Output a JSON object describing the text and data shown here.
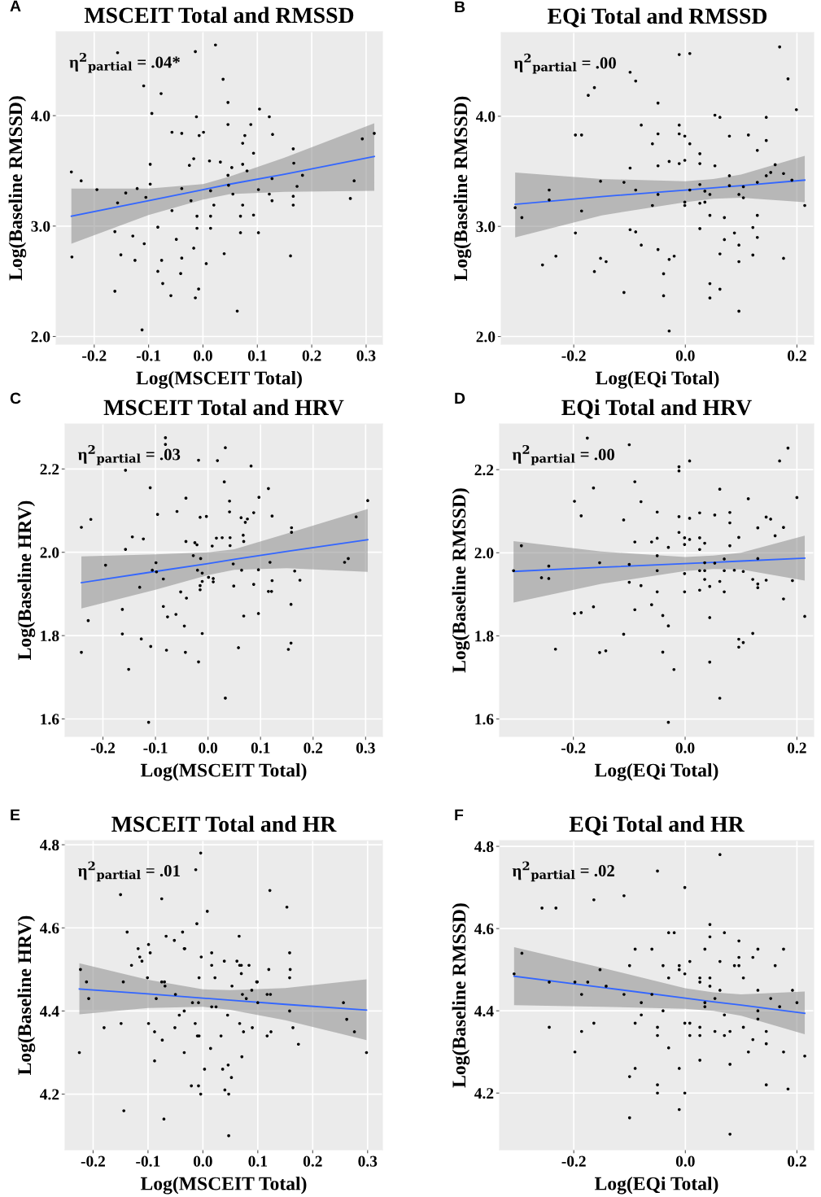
{
  "chart_data": [
    {
      "type": "scatter",
      "title": "MSCEIT Total and RMSSD",
      "xlabel": "Log(MSCEIT Total)",
      "ylabel": "Log(Baseline RMSSD)",
      "annotations": [
        "A",
        "η$^{2}$$_{partial}$ = .04*"
      ],
      "xlim": [
        -0.27,
        0.33
      ],
      "ylim": [
        1.93,
        4.76
      ],
      "xticks": [
        {
          "value": -0.2,
          "label": "-0.2"
        },
        {
          "value": -0.1,
          "label": "-0.1"
        },
        {
          "value": 0.0,
          "label": "0.0"
        },
        {
          "value": 0.1,
          "label": "0.1"
        },
        {
          "value": 0.2,
          "label": "0.2"
        },
        {
          "value": 0.3,
          "label": "0.3"
        }
      ],
      "yticks": [
        {
          "value": 2.0,
          "label": "2.0"
        },
        {
          "value": 3.0,
          "label": "3.0"
        },
        {
          "value": 4.0,
          "label": "4.0"
        }
      ],
      "grid": true,
      "series": [
        {
          "marker": "circle",
          "color": "#000000",
          "x": [
            -0.242,
            -0.241,
            -0.224,
            -0.195,
            -0.162,
            -0.162,
            -0.157,
            -0.157,
            -0.151,
            -0.142,
            -0.129,
            -0.125,
            -0.121,
            -0.109,
            -0.108,
            -0.105,
            -0.097,
            -0.097,
            -0.094,
            -0.112,
            -0.083,
            -0.083,
            -0.077,
            -0.076,
            -0.074,
            -0.059,
            -0.057,
            -0.057,
            -0.049,
            -0.041,
            -0.039,
            -0.039,
            -0.039,
            -0.025,
            -0.022,
            -0.017,
            -0.017,
            -0.014,
            -0.014,
            -0.012,
            -0.011,
            -0.011,
            -0.008,
            -0.007,
            0.001,
            0.006,
            0.012,
            0.014,
            0.014,
            0.014,
            0.02,
            0.023,
            0.032,
            0.037,
            0.039,
            0.046,
            0.046,
            0.046,
            0.047,
            0.053,
            0.055,
            0.063,
            0.069,
            0.069,
            0.073,
            0.073,
            0.073,
            0.077,
            0.081,
            0.088,
            0.093,
            0.093,
            0.102,
            0.102,
            0.104,
            0.122,
            0.122,
            0.127,
            0.127,
            0.128,
            0.161,
            0.166,
            0.167,
            0.166,
            0.166,
            0.173,
            0.183,
            0.271,
            0.278,
            0.293,
            0.315
          ],
          "values": [
            3.49,
            2.72,
            3.41,
            3.33,
            2.95,
            2.41,
            4.57,
            3.21,
            2.74,
            3.3,
            2.91,
            2.69,
            3.34,
            4.27,
            2.84,
            3.26,
            3.38,
            3.56,
            4.02,
            2.06,
            2.99,
            2.59,
            4.2,
            2.69,
            2.48,
            2.37,
            3.85,
            3.14,
            2.88,
            2.57,
            3.84,
            3.34,
            2.71,
            3.55,
            3.23,
            3.61,
            2.8,
            4.58,
            2.35,
            3.99,
            2.98,
            3.09,
            2.43,
            3.82,
            3.85,
            2.66,
            3.59,
            3.32,
            2.98,
            3.09,
            3.19,
            4.64,
            3.58,
            4.33,
            2.75,
            4.12,
            3.92,
            3.46,
            3.37,
            3.53,
            3.29,
            2.23,
            3.09,
            2.94,
            3.56,
            3.75,
            3.19,
            3.82,
            3.5,
            3.92,
            3.66,
            3.1,
            3.33,
            2.94,
            4.06,
            3.99,
            3.29,
            3.43,
            3.23,
            3.83,
            2.73,
            3.7,
            3.57,
            3.27,
            3.19,
            3.36,
            3.46,
            3.25,
            3.41,
            3.79,
            3.84
          ]
        },
        {
          "type": "line",
          "color": "#3366ff",
          "x": [
            -0.242,
            -0.1,
            0.0,
            0.05,
            0.15,
            0.315
          ],
          "values": [
            3.09,
            3.23,
            3.33,
            3.38,
            3.47,
            3.63
          ],
          "lower": [
            2.84,
            3.1,
            3.24,
            3.29,
            3.31,
            3.32
          ],
          "upper": [
            3.34,
            3.34,
            3.38,
            3.45,
            3.62,
            3.93
          ]
        }
      ]
    },
    {
      "type": "scatter",
      "title": "EQi Total and RMSSD",
      "xlabel": "Log(EQi Total)",
      "ylabel": "Log(Baseline RMSSD)",
      "annotations": [
        "B",
        "η$^{2}$$_{partial}$ = .00"
      ],
      "xlim": [
        -0.33,
        0.23
      ],
      "ylim": [
        1.93,
        4.76
      ],
      "xticks": [
        {
          "value": -0.2,
          "label": "-0.2"
        },
        {
          "value": 0.0,
          "label": "0.0"
        },
        {
          "value": 0.2,
          "label": "0.2"
        }
      ],
      "yticks": [
        {
          "value": 2.0,
          "label": "2.0"
        },
        {
          "value": 3.0,
          "label": "3.0"
        },
        {
          "value": 4.0,
          "label": "4.0"
        }
      ],
      "grid": true,
      "series": [
        {
          "marker": "circle",
          "color": "#000000",
          "x": [
            -0.305,
            -0.293,
            -0.256,
            -0.244,
            -0.244,
            -0.232,
            -0.197,
            -0.197,
            -0.186,
            -0.186,
            -0.174,
            -0.163,
            -0.163,
            -0.152,
            -0.152,
            -0.142,
            -0.11,
            -0.11,
            -0.099,
            -0.099,
            -0.099,
            -0.089,
            -0.089,
            -0.089,
            -0.079,
            -0.079,
            -0.059,
            -0.059,
            -0.049,
            -0.049,
            -0.049,
            -0.049,
            -0.049,
            -0.039,
            -0.039,
            -0.029,
            -0.029,
            -0.029,
            -0.02,
            -0.011,
            -0.011,
            -0.011,
            -0.011,
            -0.001,
            -0.001,
            -0.001,
            -0.001,
            0.008,
            0.008,
            0.008,
            0.026,
            0.026,
            0.026,
            0.026,
            0.026,
            0.035,
            0.035,
            0.044,
            0.044,
            0.044,
            0.044,
            0.053,
            0.053,
            0.062,
            0.062,
            0.062,
            0.07,
            0.07,
            0.079,
            0.079,
            0.079,
            0.088,
            0.096,
            0.096,
            0.096,
            0.096,
            0.104,
            0.104,
            0.113,
            0.121,
            0.121,
            0.129,
            0.129,
            0.129,
            0.129,
            0.145,
            0.145,
            0.145,
            0.153,
            0.161,
            0.169,
            0.176,
            0.176,
            0.184,
            0.191,
            0.199,
            0.214
          ],
          "values": [
            3.17,
            3.08,
            2.65,
            3.33,
            3.24,
            2.73,
            2.94,
            3.83,
            3.83,
            3.14,
            4.19,
            4.26,
            2.59,
            3.41,
            2.71,
            2.68,
            3.4,
            2.4,
            4.4,
            3.53,
            2.97,
            4.32,
            3.33,
            2.95,
            3.92,
            2.83,
            3.75,
            3.19,
            4.12,
            3.84,
            3.55,
            3.29,
            2.79,
            2.57,
            2.37,
            3.59,
            2.7,
            2.05,
            2.73,
            4.56,
            3.92,
            3.84,
            3.57,
            3.82,
            3.6,
            3.22,
            3.19,
            4.57,
            3.75,
            3.33,
            3.66,
            3.57,
            3.38,
            3.21,
            2.98,
            3.32,
            3.22,
            3.29,
            3.1,
            2.48,
            2.35,
            4.01,
            3.55,
            3.99,
            2.75,
            2.43,
            3.08,
            2.88,
            3.82,
            3.46,
            3.37,
            2.94,
            3.29,
            2.83,
            2.68,
            2.23,
            3.36,
            3.26,
            3.83,
            2.99,
            2.74,
            3.69,
            3.4,
            3.1,
            2.9,
            3.99,
            3.78,
            3.46,
            3.49,
            3.56,
            4.63,
            3.48,
            2.71,
            4.34,
            3.42,
            4.06,
            3.19
          ]
        },
        {
          "type": "line",
          "color": "#3366ff",
          "x": [
            -0.305,
            -0.15,
            0.0,
            0.05,
            0.1,
            0.214
          ],
          "values": [
            3.2,
            3.27,
            3.33,
            3.35,
            3.37,
            3.42
          ],
          "lower": [
            2.9,
            3.1,
            3.22,
            3.25,
            3.26,
            3.22
          ],
          "upper": [
            3.49,
            3.43,
            3.41,
            3.43,
            3.47,
            3.64
          ]
        }
      ]
    },
    {
      "type": "scatter",
      "title": "MSCEIT Total and HRV",
      "xlabel": "Log(MSCEIT Total)",
      "ylabel": "Log(Baseline HRV)",
      "annotations": [
        "C",
        "η$^{2}$$_{partial}$ = .03"
      ],
      "xlim": [
        -0.272,
        0.332
      ],
      "ylim": [
        1.558,
        2.308
      ],
      "xticks": [
        {
          "value": -0.2,
          "label": "-0.2"
        },
        {
          "value": -0.1,
          "label": "-0.1"
        },
        {
          "value": 0.0,
          "label": "0.0"
        },
        {
          "value": 0.1,
          "label": "0.1"
        },
        {
          "value": 0.2,
          "label": "0.2"
        },
        {
          "value": 0.3,
          "label": "0.3"
        }
      ],
      "yticks": [
        {
          "value": 1.6,
          "label": "1.6"
        },
        {
          "value": 1.8,
          "label": "1.8"
        },
        {
          "value": 2.0,
          "label": "2.0"
        },
        {
          "value": 2.2,
          "label": "2.2"
        }
      ],
      "grid": true,
      "series": [
        {
          "marker": "circle",
          "color": "#000000",
          "x": [
            -0.241,
            -0.241,
            -0.228,
            -0.223,
            -0.195,
            -0.163,
            -0.163,
            -0.157,
            -0.157,
            -0.151,
            -0.144,
            -0.13,
            -0.127,
            -0.123,
            -0.11,
            -0.109,
            -0.113,
            -0.106,
            -0.099,
            -0.098,
            -0.096,
            -0.085,
            -0.085,
            -0.081,
            -0.081,
            -0.079,
            -0.077,
            -0.061,
            -0.059,
            -0.052,
            -0.045,
            -0.042,
            -0.042,
            -0.041,
            -0.043,
            -0.028,
            -0.025,
            -0.021,
            -0.02,
            -0.018,
            -0.018,
            -0.015,
            -0.015,
            -0.015,
            -0.014,
            -0.011,
            -0.011,
            -0.011,
            -0.003,
            0.001,
            0.008,
            0.01,
            0.01,
            0.016,
            0.018,
            0.027,
            0.031,
            0.033,
            0.033,
            0.041,
            0.041,
            0.042,
            0.042,
            0.048,
            0.049,
            0.058,
            0.063,
            0.064,
            0.067,
            0.068,
            0.068,
            0.071,
            0.075,
            0.082,
            0.087,
            0.087,
            0.096,
            0.096,
            0.097,
            0.115,
            0.115,
            0.118,
            0.121,
            0.122,
            0.122,
            0.153,
            0.158,
            0.158,
            0.159,
            0.159,
            0.165,
            0.175,
            0.26,
            0.267,
            0.282,
            0.304
          ],
          "values": [
            2.06,
            1.76,
            1.836,
            2.079,
            1.969,
            1.863,
            1.804,
            2.197,
            2.007,
            1.719,
            2.037,
            1.916,
            1.792,
            2.032,
            2.155,
            1.774,
            1.592,
            1.957,
            1.975,
            1.953,
            2.091,
            1.936,
            1.87,
            2.275,
            2.259,
            1.765,
            1.845,
            1.851,
            2.098,
            1.905,
            1.823,
            2.13,
            2.026,
            1.89,
            1.76,
            1.992,
            2.023,
            2.018,
            1.957,
            2.221,
            1.737,
            2.084,
            1.92,
            1.91,
            1.985,
            1.93,
            1.95,
            1.805,
            2.086,
            1.94,
            2.015,
            1.929,
            1.937,
            2.034,
            2.22,
            2.035,
            2.169,
            2.251,
            1.65,
            2.123,
            2.097,
            2.035,
            2.016,
            1.972,
            1.919,
            1.771,
            2.083,
            1.957,
            2.041,
            2.026,
            1.847,
            2.072,
            2.08,
            2.207,
            1.923,
            2.095,
            1.958,
            1.853,
            2.132,
            2.153,
            1.906,
            1.976,
            1.906,
            1.932,
            2.087,
            1.767,
            1.875,
            1.782,
            2.059,
            2.048,
            1.955,
            1.933,
            1.976,
            1.985,
            2.085,
            2.124
          ]
        },
        {
          "type": "line",
          "color": "#3366ff",
          "x": [
            -0.241,
            -0.1,
            0.0,
            0.05,
            0.15,
            0.304
          ],
          "values": [
            1.927,
            1.954,
            1.973,
            1.983,
            2.002,
            2.03
          ],
          "lower": [
            1.865,
            1.91,
            1.945,
            1.958,
            1.962,
            1.953
          ],
          "upper": [
            1.99,
            1.995,
            2.0,
            2.007,
            2.045,
            2.104
          ]
        }
      ]
    },
    {
      "type": "scatter",
      "title": "EQi Total and HRV",
      "xlabel": "Log(EQi Total)",
      "ylabel": "Log(Baseline RMSSD)",
      "annotations": [
        "D",
        "η$^{2}$$_{partial}$ = .00"
      ],
      "xlim": [
        -0.332,
        0.23
      ],
      "ylim": [
        1.558,
        2.31
      ],
      "xticks": [
        {
          "value": -0.2,
          "label": "-0.2"
        },
        {
          "value": 0.0,
          "label": "0.0"
        },
        {
          "value": 0.2,
          "label": "0.2"
        }
      ],
      "yticks": [
        {
          "value": 1.6,
          "label": "1.6"
        },
        {
          "value": 1.8,
          "label": "1.8"
        },
        {
          "value": 2.0,
          "label": "2.0"
        },
        {
          "value": 2.2,
          "label": "2.2"
        }
      ],
      "grid": true,
      "series": [
        {
          "marker": "circle",
          "color": "#000000",
          "x": [
            -0.307,
            -0.293,
            -0.257,
            -0.244,
            -0.244,
            -0.232,
            -0.198,
            -0.198,
            -0.186,
            -0.186,
            -0.175,
            -0.164,
            -0.164,
            -0.153,
            -0.153,
            -0.142,
            -0.11,
            -0.11,
            -0.1,
            -0.1,
            -0.1,
            -0.09,
            -0.09,
            -0.09,
            -0.079,
            -0.079,
            -0.06,
            -0.06,
            -0.05,
            -0.05,
            -0.05,
            -0.05,
            -0.05,
            -0.04,
            -0.04,
            -0.03,
            -0.03,
            -0.03,
            -0.02,
            -0.011,
            -0.011,
            -0.011,
            -0.011,
            -0.001,
            -0.001,
            -0.001,
            -0.001,
            0.008,
            0.008,
            0.008,
            0.026,
            0.026,
            0.026,
            0.026,
            0.026,
            0.035,
            0.035,
            0.035,
            0.035,
            0.044,
            0.044,
            0.044,
            0.053,
            0.053,
            0.062,
            0.062,
            0.062,
            0.07,
            0.07,
            0.07,
            0.08,
            0.08,
            0.08,
            0.088,
            0.096,
            0.096,
            0.096,
            0.104,
            0.104,
            0.113,
            0.121,
            0.121,
            0.13,
            0.13,
            0.13,
            0.13,
            0.145,
            0.145,
            0.153,
            0.161,
            0.169,
            0.176,
            0.176,
            0.184,
            0.192,
            0.2,
            0.214
          ],
          "values": [
            1.957,
            2.017,
            1.94,
            1.968,
            1.938,
            1.768,
            2.124,
            1.854,
            2.089,
            1.856,
            2.276,
            2.156,
            1.87,
            1.976,
            1.76,
            1.764,
            2.079,
            1.804,
            2.26,
            1.972,
            1.929,
            2.171,
            2.026,
            1.863,
            2.123,
            1.921,
            2.026,
            1.875,
            2.098,
            2.035,
            1.993,
            1.957,
            1.906,
            1.849,
            1.761,
            2.013,
            1.824,
            1.592,
            1.719,
            2.207,
            2.197,
            2.087,
            2.049,
            2.036,
            2.02,
            1.95,
            1.906,
            2.221,
            2.083,
            2.032,
            2.096,
            2.036,
            2.008,
            1.957,
            1.91,
            2.023,
            1.976,
            1.957,
            1.936,
            1.919,
            1.844,
            1.737,
            2.091,
            1.975,
            2.153,
            1.931,
            1.65,
            1.985,
            1.957,
            1.906,
            2.097,
            2.072,
            2.017,
            1.958,
            2.037,
            1.792,
            1.773,
            1.784,
            1.955,
            2.13,
            1.936,
            1.806,
            2.06,
            1.986,
            1.925,
            1.916,
            2.086,
            1.934,
            2.081,
            2.041,
            2.221,
            2.061,
            1.889,
            2.252,
            1.933,
            2.133,
            1.847
          ]
        },
        {
          "type": "line",
          "color": "#3366ff",
          "x": [
            -0.307,
            -0.15,
            0.0,
            0.05,
            0.1,
            0.214
          ],
          "values": [
            1.955,
            1.965,
            1.974,
            1.977,
            1.98,
            1.987
          ],
          "lower": [
            1.88,
            1.925,
            1.956,
            1.961,
            1.96,
            1.933
          ],
          "upper": [
            2.028,
            2.003,
            1.99,
            1.993,
            2.0,
            2.041
          ]
        }
      ]
    },
    {
      "type": "scatter",
      "title": "MSCEIT Total and HR",
      "xlabel": "Log(MSCEIT Total)",
      "ylabel": "Log(Baseline HRV)",
      "annotations": [
        "E",
        "η$^{2}$$_{partial}$ = .01"
      ],
      "xlim": [
        -0.251,
        0.327
      ],
      "ylim": [
        4.066,
        4.81
      ],
      "xticks": [
        {
          "value": -0.2,
          "label": "-0.2"
        },
        {
          "value": -0.1,
          "label": "-0.1"
        },
        {
          "value": 0.0,
          "label": "0.0"
        },
        {
          "value": 0.1,
          "label": "0.1"
        },
        {
          "value": 0.2,
          "label": "0.2"
        },
        {
          "value": 0.3,
          "label": "0.3"
        }
      ],
      "yticks": [
        {
          "value": 4.2,
          "label": "4.2"
        },
        {
          "value": 4.4,
          "label": "4.4"
        },
        {
          "value": 4.6,
          "label": "4.6"
        },
        {
          "value": 4.8,
          "label": "4.8"
        }
      ],
      "grid": true,
      "series": [
        {
          "marker": "circle",
          "color": "#000000",
          "x": [
            -0.225,
            -0.223,
            -0.212,
            -0.208,
            -0.18,
            -0.15,
            -0.149,
            -0.145,
            -0.144,
            -0.138,
            -0.13,
            -0.118,
            -0.115,
            -0.111,
            -0.101,
            -0.099,
            -0.099,
            -0.096,
            -0.088,
            -0.088,
            -0.085,
            -0.075,
            -0.075,
            -0.074,
            -0.071,
            -0.07,
            -0.069,
            -0.067,
            -0.052,
            -0.051,
            -0.05,
            -0.043,
            -0.037,
            -0.034,
            -0.033,
            -0.034,
            -0.034,
            -0.021,
            -0.019,
            -0.014,
            -0.013,
            -0.011,
            -0.01,
            -0.008,
            -0.008,
            -0.007,
            -0.007,
            -0.004,
            -0.003,
            -0.004,
            0.003,
            0.008,
            0.014,
            0.016,
            0.016,
            0.016,
            0.022,
            0.024,
            0.033,
            0.036,
            0.039,
            0.04,
            0.045,
            0.046,
            0.047,
            0.047,
            0.052,
            0.053,
            0.062,
            0.066,
            0.067,
            0.067,
            0.07,
            0.07,
            0.071,
            0.072,
            0.074,
            0.079,
            0.084,
            0.089,
            0.09,
            0.098,
            0.099,
            0.1,
            0.117,
            0.117,
            0.12,
            0.122,
            0.123,
            0.124,
            0.153,
            0.158,
            0.159,
            0.158,
            0.158,
            0.164,
            0.174,
            0.256,
            0.262,
            0.276,
            0.298
          ],
          "values": [
            4.3,
            4.5,
            4.47,
            4.43,
            4.36,
            4.68,
            4.37,
            4.47,
            4.16,
            4.59,
            4.51,
            4.55,
            4.53,
            4.52,
            4.48,
            4.56,
            4.37,
            4.54,
            4.35,
            4.28,
            4.43,
            4.67,
            4.47,
            4.33,
            4.14,
            4.47,
            4.46,
            4.58,
            4.57,
            4.36,
            4.44,
            4.39,
            4.59,
            4.55,
            4.55,
            4.4,
            4.3,
            4.22,
            4.42,
            4.37,
            4.74,
            4.61,
            4.34,
            4.22,
            4.42,
            4.48,
            4.34,
            4.78,
            4.53,
            4.2,
            4.26,
            4.64,
            4.31,
            4.54,
            4.51,
            4.41,
            4.48,
            4.41,
            4.34,
            4.26,
            4.52,
            4.21,
            4.39,
            4.27,
            4.2,
            4.1,
            4.24,
            4.46,
            4.52,
            4.58,
            4.37,
            4.51,
            4.51,
            4.49,
            4.29,
            4.44,
            4.35,
            4.43,
            4.51,
            4.45,
            4.36,
            4.47,
            4.47,
            4.42,
            4.44,
            4.34,
            4.5,
            4.69,
            4.44,
            4.35,
            4.65,
            4.54,
            4.5,
            4.48,
            4.4,
            4.36,
            4.32,
            4.42,
            4.38,
            4.35,
            4.3
          ]
        },
        {
          "type": "line",
          "color": "#3366ff",
          "x": [
            -0.225,
            -0.1,
            0.0,
            0.05,
            0.15,
            0.298
          ],
          "values": [
            4.453,
            4.441,
            4.431,
            4.426,
            4.416,
            4.402
          ],
          "lower": [
            4.392,
            4.407,
            4.41,
            4.403,
            4.378,
            4.33
          ],
          "upper": [
            4.515,
            4.475,
            4.452,
            4.45,
            4.455,
            4.476
          ]
        }
      ]
    },
    {
      "type": "scatter",
      "title": "EQi Total and HR",
      "xlabel": "Log(EQi Total)",
      "ylabel": "Log(Baseline RMSSD)",
      "annotations": [
        "F",
        "η$^{2}$$_{partial}$ = .02"
      ],
      "xlim": [
        -0.333,
        0.23
      ],
      "ylim": [
        4.062,
        4.814
      ],
      "xticks": [
        {
          "value": -0.2,
          "label": "-0.2"
        },
        {
          "value": 0.0,
          "label": "0.0"
        },
        {
          "value": 0.2,
          "label": "0.2"
        }
      ],
      "yticks": [
        {
          "value": 4.2,
          "label": "4.2"
        },
        {
          "value": 4.4,
          "label": "4.4"
        },
        {
          "value": 4.6,
          "label": "4.6"
        },
        {
          "value": 4.8,
          "label": "4.8"
        }
      ],
      "grid": true,
      "series": [
        {
          "marker": "circle",
          "color": "#000000",
          "x": [
            -0.307,
            -0.293,
            -0.257,
            -0.244,
            -0.244,
            -0.232,
            -0.198,
            -0.198,
            -0.186,
            -0.186,
            -0.175,
            -0.164,
            -0.164,
            -0.153,
            -0.142,
            -0.11,
            -0.11,
            -0.1,
            -0.1,
            -0.1,
            -0.09,
            -0.09,
            -0.09,
            -0.079,
            -0.079,
            -0.06,
            -0.06,
            -0.05,
            -0.05,
            -0.05,
            -0.05,
            -0.05,
            -0.04,
            -0.04,
            -0.03,
            -0.03,
            -0.03,
            -0.02,
            -0.011,
            -0.011,
            -0.011,
            -0.011,
            -0.001,
            -0.001,
            -0.001,
            -0.001,
            0.008,
            0.008,
            0.008,
            0.026,
            0.026,
            0.026,
            0.026,
            0.026,
            0.035,
            0.035,
            0.035,
            0.044,
            0.044,
            0.044,
            0.044,
            0.053,
            0.053,
            0.062,
            0.062,
            0.062,
            0.07,
            0.07,
            0.07,
            0.08,
            0.08,
            0.08,
            0.088,
            0.096,
            0.096,
            0.096,
            0.104,
            0.104,
            0.113,
            0.121,
            0.121,
            0.13,
            0.13,
            0.13,
            0.13,
            0.145,
            0.145,
            0.145,
            0.153,
            0.161,
            0.169,
            0.176,
            0.176,
            0.184,
            0.192,
            0.2,
            0.214
          ],
          "values": [
            4.49,
            4.54,
            4.65,
            4.47,
            4.36,
            4.65,
            4.47,
            4.3,
            4.44,
            4.35,
            4.47,
            4.67,
            4.37,
            4.5,
            4.46,
            4.68,
            4.44,
            4.51,
            4.24,
            4.14,
            4.55,
            4.37,
            4.26,
            4.42,
            4.39,
            4.55,
            4.44,
            4.74,
            4.36,
            4.34,
            4.22,
            4.2,
            4.51,
            4.4,
            4.59,
            4.48,
            4.31,
            4.59,
            4.51,
            4.5,
            4.26,
            4.16,
            4.7,
            4.49,
            4.37,
            4.2,
            4.52,
            4.37,
            4.34,
            4.48,
            4.47,
            4.36,
            4.34,
            4.28,
            4.55,
            4.42,
            4.41,
            4.61,
            4.58,
            4.48,
            4.46,
            4.43,
            4.35,
            4.78,
            4.52,
            4.45,
            4.59,
            4.39,
            4.34,
            4.35,
            4.27,
            4.1,
            4.51,
            4.57,
            4.53,
            4.51,
            4.48,
            4.36,
            4.3,
            4.53,
            4.33,
            4.55,
            4.45,
            4.4,
            4.38,
            4.35,
            4.32,
            4.22,
            4.43,
            4.51,
            4.41,
            4.55,
            4.3,
            4.21,
            4.45,
            4.42,
            4.29
          ]
        },
        {
          "type": "line",
          "color": "#3366ff",
          "x": [
            -0.307,
            -0.15,
            0.0,
            0.05,
            0.1,
            0.214
          ],
          "values": [
            4.484,
            4.457,
            4.431,
            4.422,
            4.414,
            4.394
          ],
          "lower": [
            4.414,
            4.41,
            4.405,
            4.4,
            4.388,
            4.343
          ],
          "upper": [
            4.555,
            4.505,
            4.455,
            4.445,
            4.44,
            4.447
          ]
        }
      ]
    }
  ]
}
